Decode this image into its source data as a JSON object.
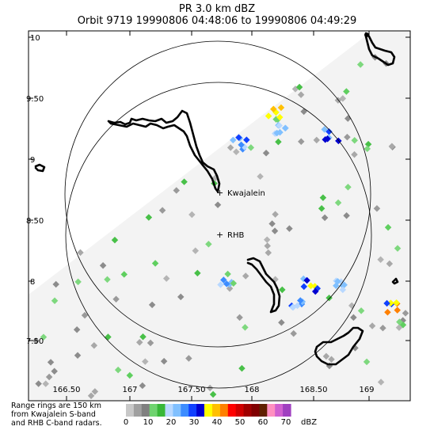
{
  "header": {
    "line1": "PR  3.0 km dBZ",
    "line2": "Orbit 9719 19990806 04:48:06 to 19990806 04:49:29"
  },
  "map": {
    "lat_labels": [
      "10",
      "9.50",
      "9",
      "8.50",
      "8",
      "7.50"
    ],
    "lon_labels": [
      "166.50",
      "167",
      "167.50",
      "168",
      "168.50",
      "169"
    ],
    "sites": [
      {
        "label": "Kwajalein"
      },
      {
        "label": "RHB"
      }
    ],
    "swath_color": "#f3f3f3"
  },
  "footer": {
    "note_line1": "Range rings are 150 km",
    "note_line2": "from Kwajalein S-band",
    "note_line3": "and RHB C-band radars.",
    "colorbar_ticks": [
      "0",
      "10",
      "20",
      "30",
      "40",
      "50",
      "60",
      "70"
    ],
    "colorbar_unit": "dBZ",
    "colorbar_colors": [
      "#c8c8c8",
      "#a0a0a0",
      "#808080",
      "#6fd36f",
      "#38b838",
      "#b8d8ff",
      "#80c0ff",
      "#3c8cff",
      "#1040ff",
      "#0000d0",
      "#ffff00",
      "#ffc000",
      "#ff8000",
      "#ff0000",
      "#d00000",
      "#a00000",
      "#800000",
      "#602000",
      "#ff90c0",
      "#d060d0",
      "#a040c0"
    ]
  }
}
